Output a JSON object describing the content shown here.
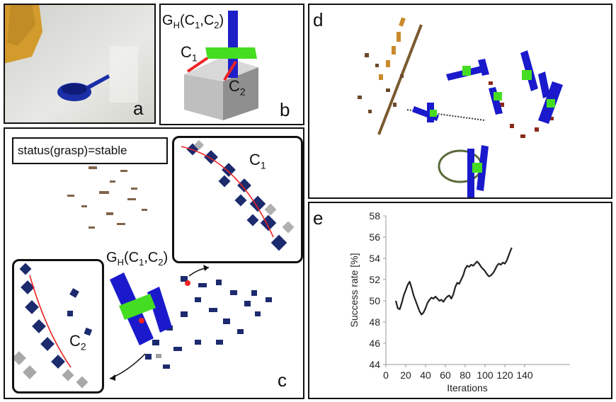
{
  "panels": {
    "a": {
      "label": "a"
    },
    "b": {
      "label": "b",
      "grasp_label": "G",
      "grasp_sub": "H",
      "grasp_args": "(C",
      "arg1": "1",
      "comma": ",C",
      "arg2": "2",
      "close": ")",
      "c1": "C",
      "c1_sub": "1",
      "c2": "C",
      "c2_sub": "2"
    },
    "c": {
      "label": "c",
      "status": "status(grasp)=stable",
      "c1": "C",
      "c1_sub": "1",
      "c2": "C",
      "c2_sub": "2",
      "grasp_label": "G",
      "grasp_sub": "H",
      "grasp_args": "(C",
      "arg1": "1",
      "comma": ",C",
      "arg2": "2",
      "close": ")"
    },
    "d": {
      "label": "d"
    },
    "e": {
      "label": "e"
    }
  },
  "colors": {
    "blue": "#1a1acc",
    "green": "#44dd22",
    "red": "#ee2222",
    "navy": "#1c2a6e"
  },
  "chart_data": {
    "type": "line",
    "title": "",
    "xlabel": "Iterations",
    "ylabel": "Success rate [%]",
    "xlim": [
      0,
      150
    ],
    "ylim": [
      44,
      58
    ],
    "xticks": [
      "0",
      "20",
      "40",
      "60",
      "80",
      "100",
      "120",
      "140"
    ],
    "yticks": [
      "44",
      "46",
      "48",
      "50",
      "52",
      "54",
      "56",
      "58"
    ],
    "grid": false,
    "series": [
      {
        "x": [
          10,
          12,
          14,
          16,
          18,
          20,
          22,
          24,
          26,
          28,
          30,
          32,
          34,
          36,
          38,
          40,
          42,
          44,
          46,
          48,
          50,
          52,
          54,
          56,
          58,
          60,
          62,
          64,
          66,
          68,
          70,
          72,
          74,
          76,
          78,
          80,
          82,
          84,
          86,
          88,
          90,
          92,
          94,
          96,
          98,
          100,
          102,
          104,
          106,
          108,
          110,
          112,
          114,
          116,
          118,
          120,
          122,
          124,
          126,
          127
        ],
        "y": [
          50.0,
          49.3,
          49.2,
          49.8,
          50.5,
          51.0,
          51.5,
          51.8,
          51.2,
          50.5,
          50.0,
          49.5,
          49.0,
          48.7,
          48.9,
          49.3,
          49.8,
          50.1,
          50.3,
          50.2,
          50.4,
          50.2,
          50.0,
          50.1,
          49.9,
          50.2,
          50.4,
          50.5,
          50.2,
          50.6,
          51.3,
          51.7,
          51.6,
          52.0,
          52.4,
          53.0,
          53.3,
          53.2,
          53.4,
          53.3,
          53.5,
          53.7,
          53.5,
          53.2,
          53.0,
          52.8,
          52.5,
          52.3,
          52.4,
          52.6,
          52.9,
          53.3,
          53.5,
          53.4,
          53.6,
          53.5,
          53.8,
          54.3,
          54.8,
          55.0
        ]
      }
    ]
  }
}
